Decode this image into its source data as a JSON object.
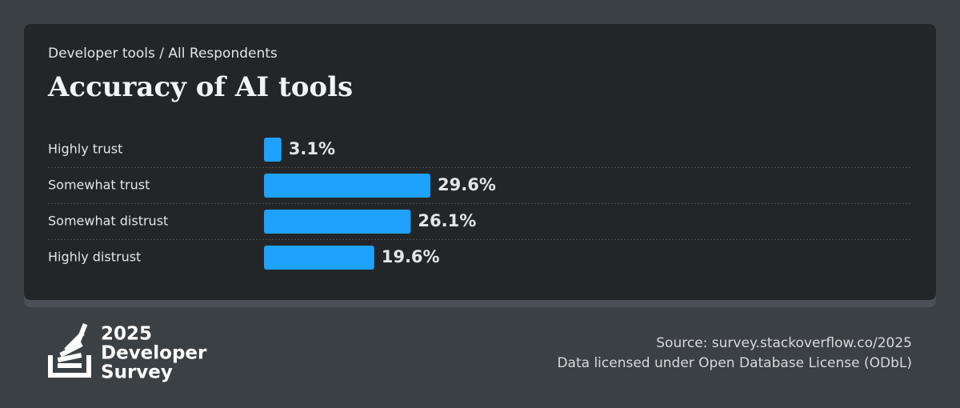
{
  "chart_data": {
    "type": "bar",
    "orientation": "horizontal",
    "subtitle": "Developer tools / All Respondents",
    "title": "Accuracy of AI tools",
    "categories": [
      "Highly trust",
      "Somewhat trust",
      "Somewhat distrust",
      "Highly distrust"
    ],
    "values": [
      3.1,
      29.6,
      26.1,
      19.6
    ],
    "value_labels": [
      "3.1%",
      "29.6%",
      "26.1%",
      "19.6%"
    ],
    "color": "#1ea1ff"
  },
  "branding": {
    "lines": [
      "2025",
      "Developer",
      "Survey"
    ]
  },
  "footer": {
    "source": "Source: survey.stackoverflow.co/2025",
    "license": "Data licensed under Open Database License (ODbL)"
  }
}
